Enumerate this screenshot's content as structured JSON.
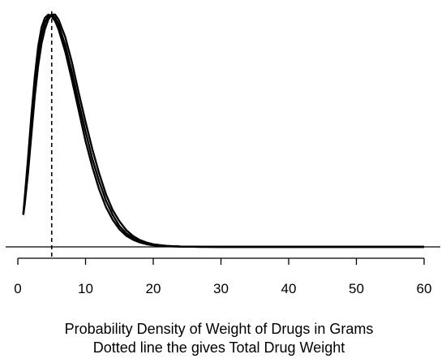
{
  "chart_data": {
    "type": "line",
    "xlabel": "Probability Density of Weight of Drugs in Grams",
    "xlabel_line2": "Dotted line the gives Total Drug Weight",
    "x_ticks": [
      0,
      10,
      20,
      30,
      40,
      50,
      60
    ],
    "x_tick_labels": [
      "0",
      "10",
      "20",
      "30",
      "40",
      "50",
      "60"
    ],
    "xlim": [
      0,
      60
    ],
    "y_axis_shown": false,
    "grid": false,
    "reference_line": {
      "x": 5,
      "style": "dashed"
    },
    "series": [
      {
        "x": [
          0.8,
          1,
          1.5,
          2,
          2.5,
          3,
          3.5,
          4,
          4.5,
          5,
          5.5,
          6,
          7,
          8,
          9,
          10,
          11,
          12,
          13,
          14,
          15,
          16,
          17,
          18,
          19,
          20,
          22,
          24,
          27,
          30,
          35,
          40,
          50,
          60
        ],
        "y": [
          0.02,
          0.03,
          0.055,
          0.082,
          0.106,
          0.125,
          0.137,
          0.143,
          0.145,
          0.144,
          0.141,
          0.136,
          0.122,
          0.104,
          0.085,
          0.066,
          0.05,
          0.036,
          0.025,
          0.017,
          0.011,
          0.007,
          0.0045,
          0.0028,
          0.0017,
          0.001,
          0.0004,
          0.00015,
          3e-05,
          0,
          0,
          0,
          0,
          0
        ]
      },
      {
        "x": [
          0.8,
          1,
          1.5,
          2,
          2.5,
          3,
          3.5,
          4,
          4.5,
          5,
          5.5,
          6,
          7,
          8,
          9,
          10,
          11,
          12,
          13,
          14,
          15,
          16,
          17,
          18,
          19,
          20,
          22,
          24,
          27,
          30,
          35,
          40,
          50,
          60
        ],
        "y": [
          0.02,
          0.028,
          0.05,
          0.076,
          0.1,
          0.119,
          0.132,
          0.14,
          0.144,
          0.145,
          0.143,
          0.139,
          0.126,
          0.109,
          0.09,
          0.072,
          0.055,
          0.041,
          0.029,
          0.02,
          0.013,
          0.0085,
          0.0055,
          0.0034,
          0.0021,
          0.0013,
          0.0005,
          0.0002,
          4e-05,
          0,
          0,
          0,
          0,
          0
        ]
      },
      {
        "x": [
          0.8,
          1,
          1.5,
          2,
          2.5,
          3,
          3.5,
          4,
          4.5,
          5,
          5.5,
          6,
          7,
          8,
          9,
          10,
          11,
          12,
          13,
          14,
          15,
          16,
          17,
          18,
          19,
          20,
          22,
          24,
          27,
          30,
          35,
          40,
          50,
          60
        ],
        "y": [
          0.02,
          0.026,
          0.046,
          0.07,
          0.094,
          0.113,
          0.127,
          0.136,
          0.142,
          0.145,
          0.145,
          0.142,
          0.131,
          0.115,
          0.096,
          0.078,
          0.061,
          0.046,
          0.033,
          0.023,
          0.016,
          0.0105,
          0.0068,
          0.0043,
          0.0027,
          0.0016,
          0.0006,
          0.00022,
          5e-05,
          0,
          0,
          0,
          0,
          0
        ]
      }
    ]
  }
}
